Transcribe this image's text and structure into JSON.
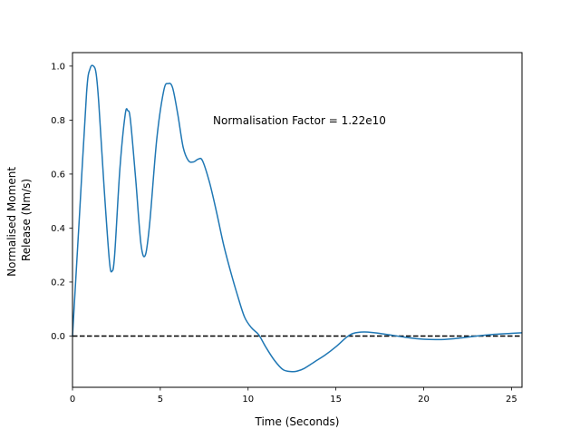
{
  "chart_data": {
    "type": "line",
    "title": "",
    "xlabel": "Time (Seconds)",
    "ylabel_lines": [
      "Normalised Moment",
      "Release (Nm/s)"
    ],
    "xlim": [
      0,
      25.6
    ],
    "ylim": [
      -0.19,
      1.05
    ],
    "x_ticks": [
      0,
      5,
      10,
      15,
      20,
      25
    ],
    "x_tick_labels": [
      "0",
      "5",
      "10",
      "15",
      "20",
      "25"
    ],
    "y_ticks": [
      0.0,
      0.2,
      0.4,
      0.6,
      0.8,
      1.0
    ],
    "y_tick_labels": [
      "0.0",
      "0.2",
      "0.4",
      "0.6",
      "0.8",
      "1.0"
    ],
    "grid": false,
    "annotation": {
      "text": "Normalisation Factor = 1.22e10",
      "x": 8.0,
      "y": 0.8
    },
    "reference_line": {
      "y": 0.0,
      "style": "dashed",
      "color": "#000000"
    },
    "series": [
      {
        "color": "#1f77b4",
        "x": [
          0.0,
          0.4,
          0.8,
          1.0,
          1.2,
          1.35,
          1.5,
          1.8,
          2.1,
          2.25,
          2.4,
          2.7,
          3.0,
          3.15,
          3.3,
          3.6,
          3.9,
          4.15,
          4.4,
          4.8,
          5.2,
          5.45,
          5.7,
          6.0,
          6.3,
          6.6,
          6.9,
          7.15,
          7.4,
          7.8,
          8.2,
          8.6,
          9.0,
          9.4,
          9.8,
          10.2,
          10.6,
          11.0,
          11.5,
          12.0,
          12.5,
          12.8,
          13.2,
          13.8,
          14.4,
          15.0,
          15.6,
          16.0,
          16.6,
          17.2,
          18.0,
          19.0,
          20.0,
          21.0,
          22.0,
          23.0,
          24.0,
          25.0,
          25.6
        ],
        "y": [
          0.0,
          0.45,
          0.9,
          0.99,
          1.0,
          0.97,
          0.86,
          0.55,
          0.28,
          0.24,
          0.3,
          0.62,
          0.82,
          0.835,
          0.8,
          0.58,
          0.34,
          0.3,
          0.42,
          0.73,
          0.91,
          0.935,
          0.92,
          0.82,
          0.7,
          0.65,
          0.645,
          0.655,
          0.65,
          0.57,
          0.46,
          0.34,
          0.24,
          0.15,
          0.07,
          0.03,
          0.005,
          -0.04,
          -0.09,
          -0.125,
          -0.132,
          -0.13,
          -0.12,
          -0.095,
          -0.07,
          -0.04,
          -0.005,
          0.01,
          0.015,
          0.012,
          0.005,
          -0.005,
          -0.012,
          -0.013,
          -0.008,
          0.0,
          0.006,
          0.01,
          0.012
        ]
      }
    ]
  }
}
